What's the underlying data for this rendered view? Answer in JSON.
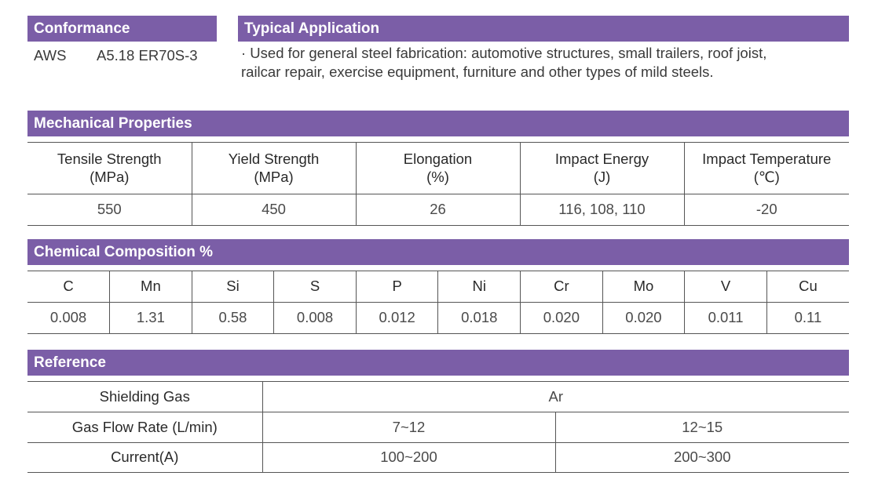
{
  "conformance": {
    "title": "Conformance",
    "standard": "AWS",
    "classification": "A5.18 ER70S-3"
  },
  "application": {
    "title": "Typical Application",
    "line1": "· Used for general steel fabrication: automotive structures, small trailers, roof joist,",
    "line2": "railcar repair, exercise equipment, furniture and other types of mild steels."
  },
  "mechanical": {
    "title": "Mechanical Properties",
    "headers": [
      {
        "name": "Tensile Strength",
        "unit": "(MPa)"
      },
      {
        "name": "Yield Strength",
        "unit": "(MPa)"
      },
      {
        "name": "Elongation",
        "unit": "(%)"
      },
      {
        "name": "Impact Energy",
        "unit": "(J)"
      },
      {
        "name": "Impact Temperature",
        "unit": "(℃)"
      }
    ],
    "values": [
      "550",
      "450",
      "26",
      "116, 108, 110",
      "-20"
    ]
  },
  "chemical": {
    "title": "Chemical Composition %",
    "elements": [
      "C",
      "Mn",
      "Si",
      "S",
      "P",
      "Ni",
      "Cr",
      "Mo",
      "V",
      "Cu"
    ],
    "values": [
      "0.008",
      "1.31",
      "0.58",
      "0.008",
      "0.012",
      "0.018",
      "0.020",
      "0.020",
      "0.011",
      "0.11"
    ]
  },
  "reference": {
    "title": "Reference",
    "shielding_gas_label": "Shielding Gas",
    "shielding_gas_value": "Ar",
    "gas_flow_label": "Gas Flow Rate (L/min)",
    "gas_flow_values": [
      "7~12",
      "12~15"
    ],
    "current_label": "Current(A)",
    "current_values": [
      "100~200",
      "200~300"
    ]
  },
  "colors": {
    "header_bar": "#7b5ea7",
    "header_text": "#ffffff",
    "rule": "#555555"
  }
}
